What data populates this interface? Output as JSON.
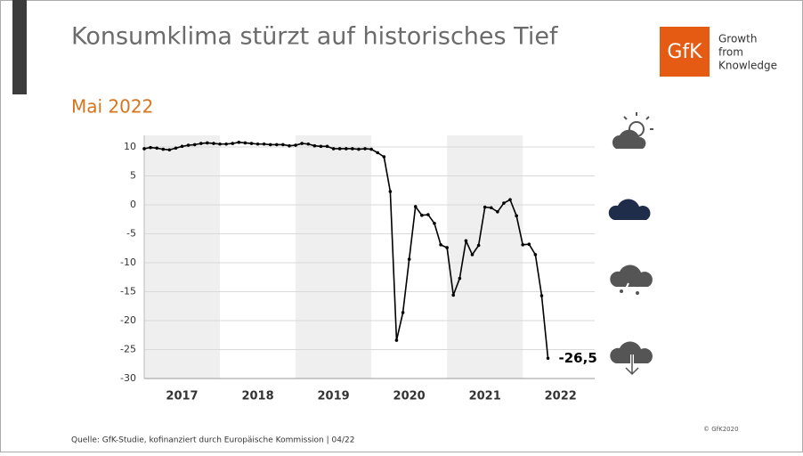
{
  "header": {
    "title": "Konsumklima stürzt auf historisches Tief",
    "subtitle": "Mai 2022"
  },
  "logo": {
    "mark": "GfK",
    "tagline": [
      "Growth",
      "from",
      "Knowledge"
    ]
  },
  "chart_data": {
    "type": "line",
    "x": [
      2017,
      2017.083,
      2017.167,
      2017.25,
      2017.333,
      2017.417,
      2017.5,
      2017.583,
      2017.667,
      2017.75,
      2017.833,
      2017.917,
      2018,
      2018.083,
      2018.167,
      2018.25,
      2018.333,
      2018.417,
      2018.5,
      2018.583,
      2018.667,
      2018.75,
      2018.833,
      2018.917,
      2019,
      2019.083,
      2019.167,
      2019.25,
      2019.333,
      2019.417,
      2019.5,
      2019.583,
      2019.667,
      2019.75,
      2019.833,
      2019.917,
      2020,
      2020.083,
      2020.167,
      2020.25,
      2020.333,
      2020.417,
      2020.5,
      2020.583,
      2020.667,
      2020.75,
      2020.833,
      2020.917,
      2021,
      2021.083,
      2021.167,
      2021.25,
      2021.333,
      2021.417,
      2021.5,
      2021.583,
      2021.667,
      2021.75,
      2021.833,
      2021.917,
      2022,
      2022.083,
      2022.167,
      2022.25,
      2022.333
    ],
    "values": [
      9.7,
      9.9,
      9.8,
      9.6,
      9.5,
      9.8,
      10.1,
      10.3,
      10.4,
      10.6,
      10.7,
      10.6,
      10.5,
      10.5,
      10.6,
      10.8,
      10.7,
      10.6,
      10.5,
      10.5,
      10.4,
      10.4,
      10.4,
      10.2,
      10.3,
      10.6,
      10.5,
      10.2,
      10.1,
      10.1,
      9.7,
      9.7,
      9.7,
      9.7,
      9.6,
      9.7,
      9.6,
      9.0,
      8.3,
      2.3,
      -23.4,
      -18.6,
      -9.4,
      -0.3,
      -1.8,
      -1.7,
      -3.2,
      -6.9,
      -7.4,
      -15.6,
      -12.7,
      -6.2,
      -8.6,
      -7.0,
      -0.4,
      -0.5,
      -1.2,
      0.3,
      0.9,
      -1.9,
      -6.9,
      -6.8,
      -8.6,
      -15.7,
      -26.5
    ],
    "value_labels": [
      null,
      null,
      null,
      null,
      null,
      null,
      null,
      null,
      null,
      null,
      null,
      null,
      null,
      null,
      null,
      null,
      null,
      null,
      null,
      null,
      null,
      null,
      null,
      null,
      null,
      null,
      null,
      null,
      null,
      null,
      null,
      null,
      null,
      null,
      null,
      null,
      null,
      null,
      null,
      null,
      null,
      null,
      null,
      null,
      null,
      null,
      null,
      null,
      null,
      null,
      null,
      null,
      null,
      null,
      null,
      null,
      null,
      null,
      null,
      null,
      null,
      null,
      null,
      null,
      "-26,5"
    ],
    "color": "#000000",
    "shaded_years": [
      2017,
      2019,
      2021
    ],
    "xlim": [
      2017,
      2022.95
    ],
    "xticks": [
      {
        "value": 2017.5,
        "label": "2017"
      },
      {
        "value": 2018.5,
        "label": "2018"
      },
      {
        "value": 2019.5,
        "label": "2019"
      },
      {
        "value": 2020.5,
        "label": "2020"
      },
      {
        "value": 2021.5,
        "label": "2021"
      },
      {
        "value": 2022.5,
        "label": "2022"
      }
    ],
    "ylim": [
      -30,
      12
    ],
    "yticks": [
      10,
      5,
      0,
      -5,
      -10,
      -15,
      -20,
      -25,
      -30
    ],
    "grid": true
  },
  "footer": {
    "source": "Quelle: GfK-Studie, kofinanziert durch Europäische Kommission | 04/22",
    "copyright": "© GfK2020"
  }
}
